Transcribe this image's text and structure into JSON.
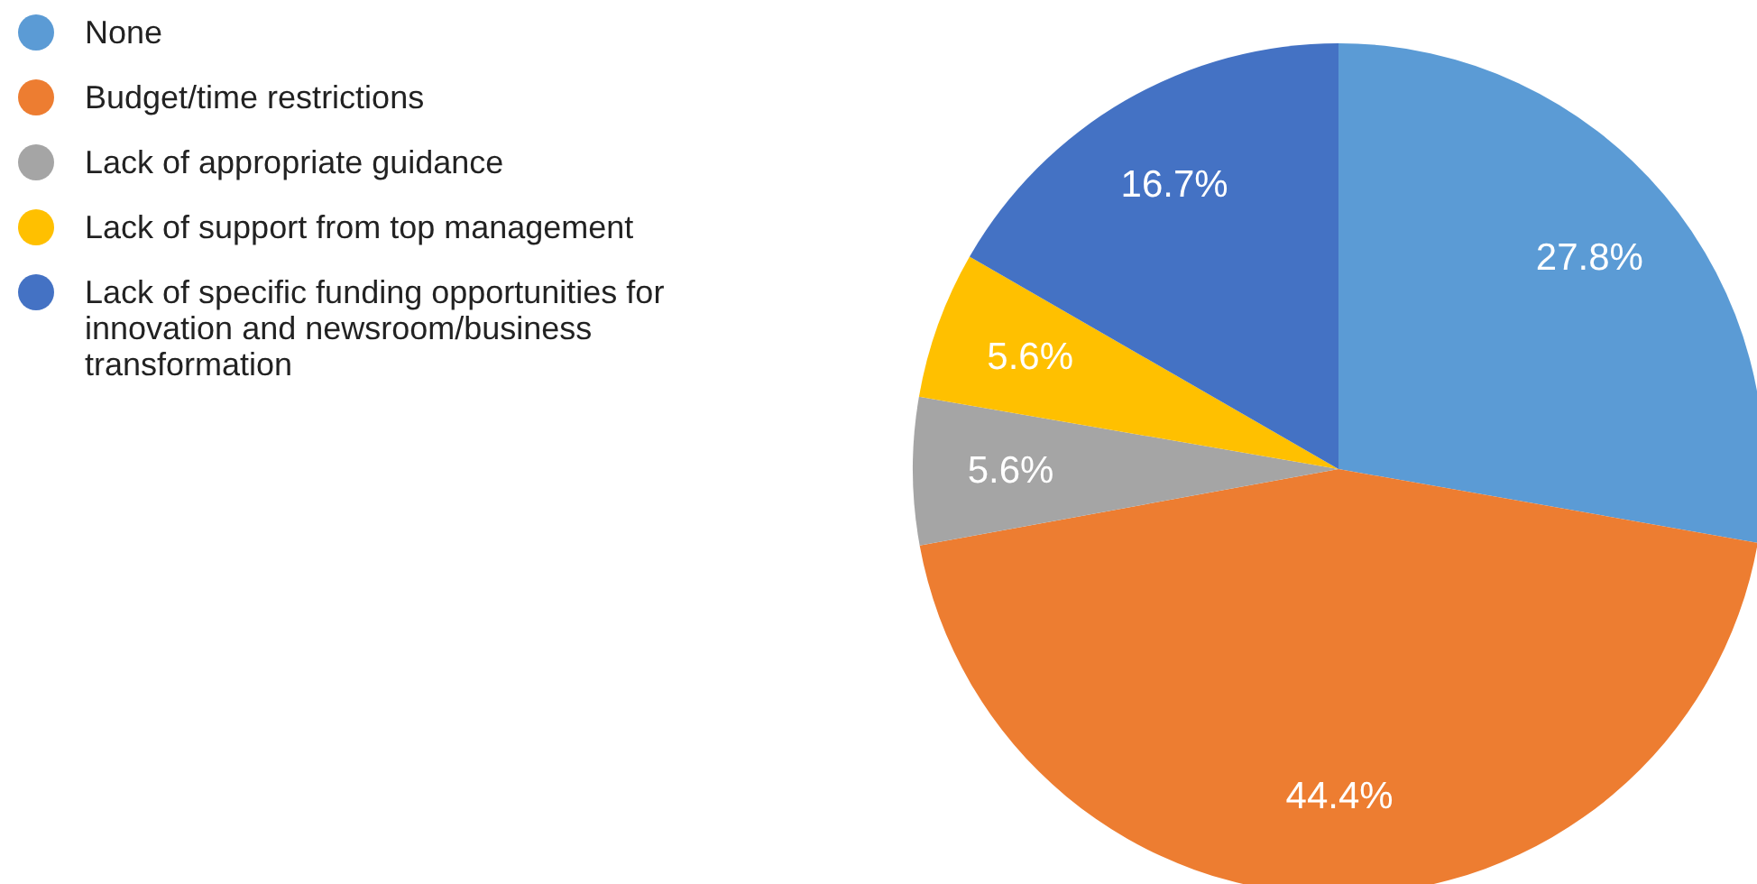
{
  "chart_data": {
    "type": "pie",
    "categories": [
      "None",
      "Budget/time restrictions",
      "Lack of appropriate guidance",
      "Lack of support from top management",
      "Lack of specific funding opportunities for innovation and newsroom/business transformation"
    ],
    "values": [
      27.8,
      44.4,
      5.6,
      5.6,
      16.7
    ],
    "colors": [
      "#5b9bd5",
      "#ed7d31",
      "#a5a5a5",
      "#ffc000",
      "#4472c4"
    ],
    "value_labels": [
      "27.8%",
      "44.4%",
      "5.6%",
      "5.6%",
      "16.7%"
    ],
    "legend": "left"
  }
}
